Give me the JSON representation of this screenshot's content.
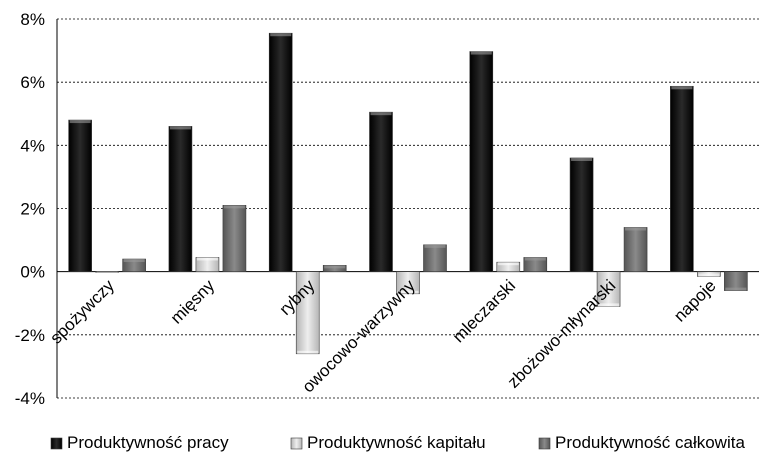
{
  "chart_data": {
    "type": "bar",
    "categories": [
      "spożywczy",
      "mięsny",
      "rybny",
      "owocowo-warzywny",
      "mleczarski",
      "zbożowo-młynarski",
      "napoje"
    ],
    "series": [
      {
        "name": "Produktywność pracy",
        "values": [
          4.8,
          4.6,
          7.55,
          5.05,
          6.97,
          3.6,
          5.87
        ],
        "color": "#111111"
      },
      {
        "name": "Produktywność kapitału",
        "values": [
          0.0,
          0.45,
          -2.6,
          -0.7,
          0.3,
          -1.1,
          -0.15
        ],
        "color": "#d2d2d2"
      },
      {
        "name": "Produktywność całkowita",
        "values": [
          0.4,
          2.1,
          0.2,
          0.85,
          0.45,
          1.4,
          -0.6
        ],
        "color": "#6b6b6b"
      }
    ],
    "y_ticks": [
      "8%",
      "6%",
      "4%",
      "2%",
      "0%",
      "-2%",
      "-4%"
    ],
    "y_tick_values": [
      8,
      6,
      4,
      2,
      0,
      -2,
      -4
    ],
    "ylim": [
      -4,
      8
    ],
    "grid": true,
    "legend_position": "bottom",
    "title": "",
    "xlabel": "",
    "ylabel": ""
  }
}
